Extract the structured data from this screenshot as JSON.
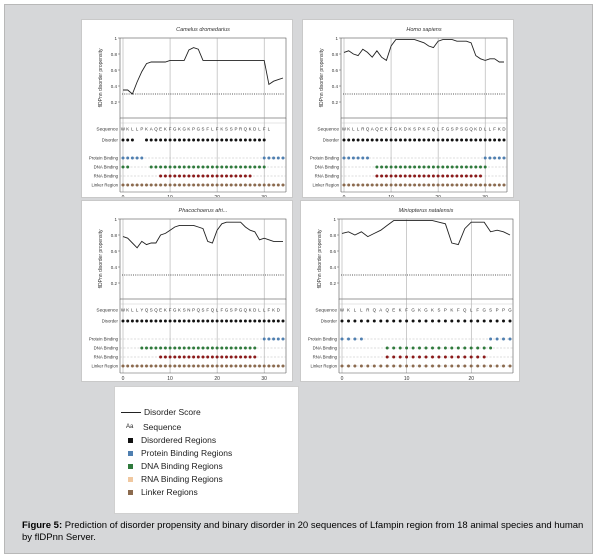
{
  "caption": {
    "label": "Figure 5:",
    "text": " Prediction of disorder propensity and binary disorder in 20 sequences of Lfampin region from 18 animal species and human by flDPnn Server."
  },
  "legend": {
    "items": [
      {
        "label": "Disorder Score",
        "kind": "line",
        "color": "#222222"
      },
      {
        "label": "Sequence",
        "kind": "aa",
        "color": "#222222"
      },
      {
        "label": "Disordered Regions",
        "kind": "square",
        "color": "#111111"
      },
      {
        "label": "Protein Binding Regions",
        "kind": "square",
        "color": "#4f7fb0"
      },
      {
        "label": "DNA Binding Regions",
        "kind": "square",
        "color": "#2f7a3c"
      },
      {
        "label": "RNA Binding Regions",
        "kind": "square",
        "color": "#f0c8a0"
      },
      {
        "label": "Linker Regions",
        "kind": "square",
        "color": "#8b6a4e"
      }
    ],
    "aa_glyph": "Aa"
  },
  "chart_data": [
    {
      "type": "line",
      "title": "Camelus dromedarius",
      "ylabel": "flDPnn disorder propensity",
      "ylim": [
        0,
        1
      ],
      "yticks": [
        0.2,
        0.4,
        0.6,
        0.8,
        1
      ],
      "xticks": [
        0,
        10,
        20,
        30
      ],
      "sequence": "WKLLPKAQEKFGKGKPGSFLFKSSPRQKDLFL",
      "sequence_label": "Sequence",
      "threshold": 0.3,
      "x": [
        0,
        1,
        2,
        3,
        4,
        5,
        6,
        7,
        8,
        9,
        10,
        11,
        12,
        13,
        14,
        15,
        16,
        17,
        18,
        19,
        20,
        21,
        22,
        23,
        24,
        25,
        26,
        27,
        28,
        29,
        30,
        31,
        32,
        33,
        34
      ],
      "values": [
        0.35,
        0.35,
        0.3,
        0.45,
        0.58,
        0.68,
        0.7,
        0.7,
        0.7,
        0.7,
        0.72,
        0.72,
        0.72,
        0.72,
        0.85,
        0.88,
        0.86,
        0.72,
        0.72,
        0.72,
        0.72,
        0.72,
        0.72,
        0.72,
        0.72,
        0.72,
        0.72,
        0.72,
        0.72,
        0.72,
        0.72,
        0.42,
        0.46,
        0.48,
        0.5
      ],
      "tracks": [
        {
          "label": "Disorder",
          "color": "#111111",
          "segments": [
            [
              0,
              2
            ],
            [
              5,
              30
            ]
          ],
          "dashed": false
        },
        {
          "label": "Protein Binding",
          "color": "#4f7fb0",
          "segments": [
            [
              0,
              4
            ],
            [
              30,
              34
            ]
          ],
          "dashed": true
        },
        {
          "label": "DNA Binding",
          "color": "#2f7a3c",
          "segments": [
            [
              0,
              1
            ],
            [
              6,
              30
            ]
          ],
          "dashed": true
        },
        {
          "label": "RNA Binding",
          "color": "#8b1a1a",
          "segments": [
            [
              8,
              27
            ]
          ],
          "dashed": true
        },
        {
          "label": "Linker Region",
          "color": "#8b6a4e",
          "segments": [
            [
              0,
              34
            ]
          ],
          "dashed": true
        }
      ]
    },
    {
      "type": "line",
      "title": "Homo sapiens",
      "ylabel": "flDPnn disorder propensity",
      "ylim": [
        0,
        1
      ],
      "yticks": [
        0.2,
        0.4,
        0.6,
        0.8,
        1
      ],
      "xticks": [
        0,
        10,
        20,
        30
      ],
      "sequence": "WKLLRQAQEKFGKDKSPKFQLFGSPSGQKDLLFKD",
      "sequence_label": "Sequence",
      "threshold": 0.3,
      "x": [
        0,
        1,
        2,
        3,
        4,
        5,
        6,
        7,
        8,
        9,
        10,
        11,
        12,
        13,
        14,
        15,
        16,
        17,
        18,
        19,
        20,
        21,
        22,
        23,
        24,
        25,
        26,
        27,
        28,
        29,
        30,
        31,
        32,
        33,
        34
      ],
      "values": [
        0.82,
        0.84,
        0.8,
        0.78,
        0.86,
        0.82,
        0.76,
        0.84,
        0.76,
        0.72,
        0.9,
        0.98,
        0.98,
        0.98,
        0.98,
        0.98,
        0.96,
        0.94,
        0.9,
        0.88,
        0.96,
        0.98,
        0.98,
        0.98,
        0.96,
        0.96,
        0.96,
        0.94,
        0.78,
        0.74,
        0.72,
        0.74,
        0.74,
        0.7,
        0.7
      ],
      "tracks": [
        {
          "label": "Disorder",
          "color": "#111111",
          "segments": [
            [
              0,
              34
            ]
          ],
          "dashed": false
        },
        {
          "label": "Protein Binding",
          "color": "#4f7fb0",
          "segments": [
            [
              0,
              5
            ],
            [
              30,
              34
            ]
          ],
          "dashed": true
        },
        {
          "label": "DNA Binding",
          "color": "#2f7a3c",
          "segments": [
            [
              7,
              30
            ]
          ],
          "dashed": true
        },
        {
          "label": "RNA Binding",
          "color": "#8b1a1a",
          "segments": [
            [
              7,
              29
            ]
          ],
          "dashed": true
        },
        {
          "label": "Linker Region",
          "color": "#8b6a4e",
          "segments": [
            [
              0,
              34
            ]
          ],
          "dashed": true
        }
      ]
    },
    {
      "type": "line",
      "title": "Phacochoerus afri...",
      "ylabel": "flDPnn disorder propensity",
      "ylim": [
        0,
        1
      ],
      "yticks": [
        0.2,
        0.4,
        0.6,
        0.8,
        1
      ],
      "xticks": [
        0,
        10,
        20,
        30
      ],
      "sequence": "WKLLYQSQEKFGKSNPQSFQLFGSPGQKDLLFKD",
      "sequence_label": "Sequence",
      "threshold": 0.3,
      "x": [
        0,
        1,
        2,
        3,
        4,
        5,
        6,
        7,
        8,
        9,
        10,
        11,
        12,
        13,
        14,
        15,
        16,
        17,
        18,
        19,
        20,
        21,
        22,
        23,
        24,
        25,
        26,
        27,
        28,
        29,
        30,
        31,
        32,
        33,
        34
      ],
      "values": [
        0.78,
        0.76,
        0.7,
        0.64,
        0.72,
        0.68,
        0.7,
        0.7,
        0.8,
        0.82,
        0.86,
        0.9,
        0.92,
        0.92,
        0.92,
        0.92,
        0.9,
        0.88,
        0.72,
        0.7,
        0.86,
        0.94,
        0.96,
        0.96,
        0.96,
        0.96,
        0.9,
        0.86,
        0.84,
        0.74,
        0.76,
        0.74,
        0.72,
        0.72,
        0.72
      ],
      "tracks": [
        {
          "label": "Disorder",
          "color": "#111111",
          "segments": [
            [
              0,
              34
            ]
          ],
          "dashed": false
        },
        {
          "label": "Protein Binding",
          "color": "#4f7fb0",
          "segments": [
            [
              30,
              34
            ]
          ],
          "dashed": true
        },
        {
          "label": "DNA Binding",
          "color": "#2f7a3c",
          "segments": [
            [
              4,
              28
            ]
          ],
          "dashed": true
        },
        {
          "label": "RNA Binding",
          "color": "#8b1a1a",
          "segments": [
            [
              8,
              28
            ]
          ],
          "dashed": true
        },
        {
          "label": "Linker Region",
          "color": "#8b6a4e",
          "segments": [
            [
              0,
              34
            ]
          ],
          "dashed": true
        }
      ]
    },
    {
      "type": "line",
      "title": "Miniopterus natalensis",
      "ylabel": "flDPnn disorder propensity",
      "ylim": [
        0,
        1
      ],
      "yticks": [
        0.2,
        0.4,
        0.6,
        0.8,
        1
      ],
      "xticks": [
        0,
        10,
        20
      ],
      "sequence": "WKLLRQAQEKFGKGKSPKFQLFGSPPGQKDLMFKD",
      "sequence_label": "Sequence",
      "threshold": 0.3,
      "x": [
        0,
        1,
        2,
        3,
        4,
        5,
        6,
        7,
        8,
        9,
        10,
        11,
        12,
        13,
        14,
        15,
        16,
        17,
        18,
        19,
        20,
        21,
        22,
        23,
        24,
        25,
        26
      ],
      "values": [
        0.82,
        0.84,
        0.8,
        0.84,
        0.78,
        0.82,
        0.86,
        0.92,
        0.98,
        0.98,
        0.98,
        0.98,
        0.98,
        0.98,
        0.98,
        0.96,
        0.94,
        0.7,
        0.68,
        0.88,
        0.96,
        0.96,
        0.96,
        0.84,
        0.86,
        0.84,
        0.8
      ],
      "tracks": [
        {
          "label": "Disorder",
          "color": "#111111",
          "segments": [
            [
              0,
              26
            ]
          ],
          "dashed": false
        },
        {
          "label": "Protein Binding",
          "color": "#4f7fb0",
          "segments": [
            [
              0,
              3
            ],
            [
              23,
              26
            ]
          ],
          "dashed": true
        },
        {
          "label": "DNA Binding",
          "color": "#2f7a3c",
          "segments": [
            [
              7,
              23
            ]
          ],
          "dashed": true
        },
        {
          "label": "RNA Binding",
          "color": "#8b1a1a",
          "segments": [
            [
              7,
              22
            ]
          ],
          "dashed": true
        },
        {
          "label": "Linker Region",
          "color": "#8b6a4e",
          "segments": [
            [
              0,
              26
            ]
          ],
          "dashed": true
        }
      ]
    }
  ]
}
